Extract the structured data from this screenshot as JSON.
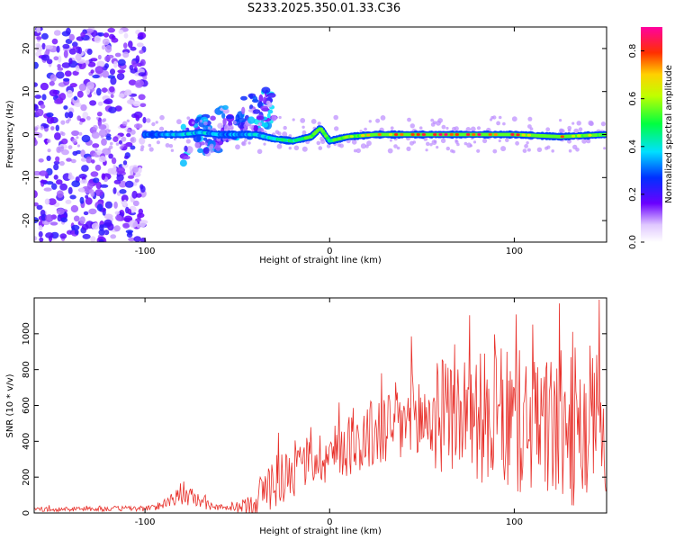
{
  "title": "S233.2025.350.01.33.C36",
  "colors": {
    "snr_line": "#e8302a",
    "signal_low": "#5f00f0",
    "signal_mid": "#00e0ff",
    "signal_high": "#ff2020"
  },
  "chart_data": [
    {
      "type": "heatmap",
      "xlabel": "Height of straight line (km)",
      "ylabel": "Frequency (Hz)",
      "xlim": [
        -160,
        150
      ],
      "ylim": [
        -25,
        25
      ],
      "xticks": [
        -100,
        0,
        100
      ],
      "xtick_labels": [
        "-100",
        "0",
        "100"
      ],
      "yticks": [
        -20,
        -10,
        0,
        10,
        20
      ],
      "ytick_labels": [
        "-20",
        "-10",
        "0",
        "10",
        "20"
      ],
      "colorbar": {
        "label": "Normalized spectral amplitude",
        "range": [
          0.0,
          0.9
        ],
        "ticks": [
          0.0,
          0.2,
          0.4,
          0.6,
          0.8
        ],
        "tick_labels": [
          "0.0",
          "0.2",
          "0.4",
          "0.6",
          "0.8"
        ]
      },
      "trace": {
        "x": [
          -100,
          -90,
          -80,
          -70,
          -60,
          -50,
          -40,
          -30,
          -20,
          -10,
          -5,
          0,
          10,
          25,
          50,
          75,
          100,
          125,
          150
        ],
        "frequency": [
          0,
          0,
          0,
          0.5,
          0,
          0,
          0,
          -1,
          -1.5,
          -0.5,
          1.5,
          -1.5,
          -0.5,
          0,
          0,
          0,
          0,
          -0.5,
          0
        ],
        "amplitude": [
          0.3,
          0.35,
          0.4,
          0.4,
          0.35,
          0.35,
          0.4,
          0.45,
          0.5,
          0.55,
          0.6,
          0.5,
          0.6,
          0.75,
          0.8,
          0.85,
          0.8,
          0.75,
          0.6
        ]
      },
      "scatter_regions": [
        {
          "name": "noise",
          "x_range": [
            -160,
            -100
          ],
          "f_range": [
            -25,
            25
          ],
          "amplitude": 0.12
        },
        {
          "name": "rising-branch",
          "x_range": [
            -80,
            -30
          ],
          "f_range": [
            -5,
            12
          ],
          "amplitude": 0.2
        }
      ]
    },
    {
      "type": "line",
      "xlabel": "Height of straight line (km)",
      "ylabel": "SNR (10 * v/v)",
      "xlim": [
        -160,
        150
      ],
      "ylim": [
        0,
        1200
      ],
      "xticks": [
        -100,
        0,
        100
      ],
      "xtick_labels": [
        "-100",
        "0",
        "100"
      ],
      "yticks": [
        0,
        200,
        400,
        600,
        800,
        1000
      ],
      "ytick_labels": [
        "0",
        "200",
        "400",
        "600",
        "800",
        "1000"
      ],
      "envelope": {
        "x": [
          -160,
          -100,
          -95,
          -85,
          -75,
          -65,
          -55,
          -45,
          -40,
          -30,
          -20,
          -10,
          0,
          10,
          20,
          30,
          40,
          50,
          60,
          70,
          80,
          90,
          100,
          110,
          120,
          130,
          140,
          150
        ],
        "base": [
          20,
          25,
          30,
          80,
          90,
          40,
          25,
          40,
          80,
          180,
          240,
          300,
          320,
          380,
          420,
          470,
          500,
          520,
          540,
          560,
          540,
          520,
          500,
          490,
          480,
          470,
          460,
          450
        ],
        "amp": [
          15,
          20,
          20,
          60,
          70,
          30,
          15,
          60,
          120,
          200,
          200,
          180,
          200,
          220,
          250,
          280,
          320,
          380,
          400,
          420,
          450,
          500,
          520,
          500,
          520,
          560,
          620,
          700
        ]
      }
    }
  ]
}
